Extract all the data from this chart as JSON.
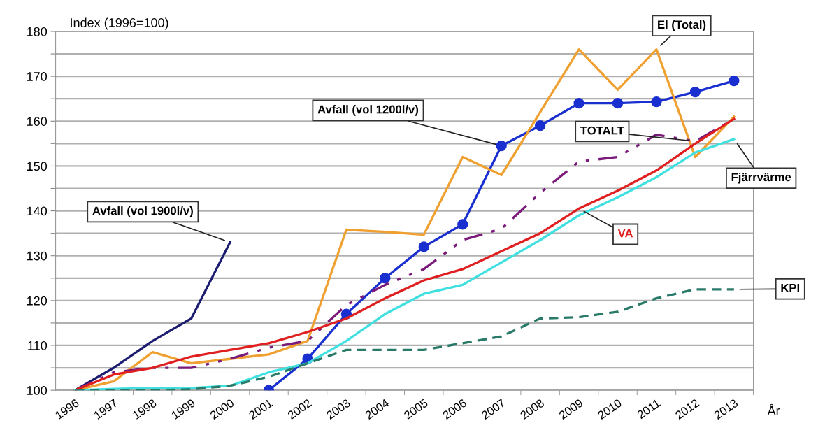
{
  "chart_data": {
    "type": "line",
    "ylabel": "Index (1996=100)",
    "xlabel": "År",
    "categories": [
      "1996",
      "1997",
      "1998",
      "1999",
      "2000",
      "2001",
      "2002",
      "2003",
      "2004",
      "2005",
      "2006",
      "2007",
      "2008",
      "2009",
      "2010",
      "2011",
      "2012",
      "2013"
    ],
    "ylim": [
      100,
      180
    ],
    "yticks": [
      100,
      {
        "value": 105,
        "label": null
      },
      110,
      {
        "value": 115,
        "label": null
      },
      120,
      {
        "value": 125,
        "label": null
      },
      130,
      {
        "value": 135,
        "label": null
      },
      140,
      {
        "value": 145,
        "label": null
      },
      150,
      {
        "value": 155,
        "label": null
      },
      160,
      {
        "value": 165,
        "label": null
      },
      170,
      {
        "value": 175,
        "label": null
      },
      180
    ],
    "grid": "y",
    "legend": false,
    "series": [
      {
        "name": "Avfall (vol 1900l/v)",
        "color": "#1c1c70",
        "line_style": "solid",
        "marker": "none",
        "values": [
          100,
          105,
          111,
          116,
          133,
          null,
          null,
          null,
          null,
          null,
          null,
          null,
          null,
          null,
          null,
          null,
          null,
          null
        ]
      },
      {
        "name": "Avfall (vol 1200l/v)",
        "color": "#1a2fd0",
        "line_style": "solid",
        "marker": "circle",
        "values": [
          null,
          null,
          null,
          null,
          null,
          100,
          107,
          117,
          125,
          132,
          137,
          154.5,
          159,
          164,
          164,
          164.3,
          166.5,
          169
        ]
      },
      {
        "name": "El (Total)",
        "color": "#f0a030",
        "line_style": "solid",
        "marker": "none",
        "values": [
          100,
          102,
          108.5,
          106,
          107,
          108,
          111,
          135.8,
          135.3,
          134.7,
          152,
          148,
          162,
          176,
          167,
          176,
          152,
          161
        ]
      },
      {
        "name": "TOTALT",
        "color": "#7a1a7a",
        "line_style": "dashdot",
        "marker": "none",
        "values": [
          100,
          104,
          105,
          105,
          107,
          109.5,
          111,
          119,
          123.5,
          127,
          133.5,
          136,
          144,
          151,
          152,
          157,
          155.5,
          160.5
        ]
      },
      {
        "name": "VA",
        "color": "#e02020",
        "line_style": "solid",
        "marker": "none",
        "values": [
          100,
          103.5,
          105,
          107.5,
          109,
          110.5,
          113,
          116,
          120.5,
          124.5,
          127,
          131,
          135,
          140.5,
          144.5,
          149,
          155,
          160.5
        ]
      },
      {
        "name": "Fjärrvärme",
        "color": "#40e0e0",
        "line_style": "solid",
        "marker": "none",
        "values": [
          100,
          100.3,
          100.5,
          100.5,
          101,
          104,
          106,
          111,
          117,
          121.5,
          123.5,
          128.5,
          133.5,
          139,
          143,
          147.5,
          153,
          156
        ]
      },
      {
        "name": "KPI",
        "color": "#2a7a6a",
        "line_style": "dashed",
        "marker": "none",
        "values": [
          100,
          100,
          100,
          100.2,
          101,
          103,
          106,
          109,
          109,
          109,
          110.5,
          112,
          116,
          116.3,
          117.5,
          120.5,
          122.5,
          122.5
        ]
      }
    ]
  }
}
